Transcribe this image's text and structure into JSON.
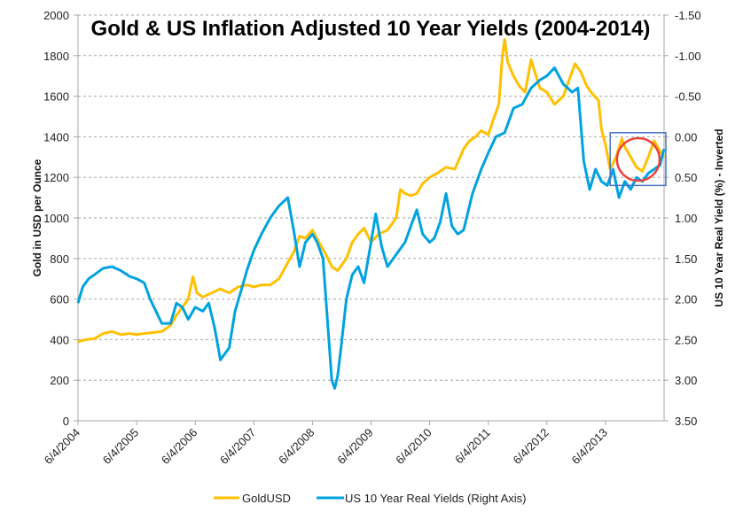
{
  "chart_data": {
    "type": "line",
    "title": "Gold & US Inflation Adjusted 10 Year Yields (2004-2014)",
    "xlabel": "",
    "ylabel": "Gold in USD per Ounce",
    "y2label": "US 10 Year Real Yield (%) - Inverted",
    "ylim": [
      0,
      2000
    ],
    "y2lim": [
      -1.5,
      3.5
    ],
    "y2_inverted": true,
    "xlim": [
      2004.42,
      2014.42
    ],
    "grid": true,
    "legend_position": "bottom",
    "colors": {
      "gold": "#FFC000",
      "yield": "#00A3E0",
      "box": "#4472C4",
      "circle": "#E8423A",
      "axis": "#A6A6A6",
      "grid": "#A6A6A6"
    },
    "y_ticks": [
      "0",
      "200",
      "400",
      "600",
      "800",
      "1000",
      "1200",
      "1400",
      "1600",
      "1800",
      "2000"
    ],
    "y2_ticks": [
      "-1.50",
      "-1.00",
      "-0.50",
      "0.00",
      "0.50",
      "1.00",
      "1.50",
      "2.00",
      "2.50",
      "3.00",
      "3.50"
    ],
    "x_ticks": [
      "6/4/2004",
      "6/4/2005",
      "6/4/2006",
      "6/4/2007",
      "6/4/2008",
      "6/4/2009",
      "6/4/2010",
      "6/4/2011",
      "6/4/2012",
      "6/4/2013"
    ],
    "series": [
      {
        "name": "GoldUSD",
        "axis": "left",
        "x": [
          2004.42,
          2004.55,
          2004.7,
          2004.85,
          2005.0,
          2005.15,
          2005.3,
          2005.42,
          2005.55,
          2005.7,
          2005.85,
          2006.0,
          2006.1,
          2006.2,
          2006.3,
          2006.38,
          2006.45,
          2006.55,
          2006.7,
          2006.85,
          2007.0,
          2007.15,
          2007.3,
          2007.42,
          2007.55,
          2007.7,
          2007.85,
          2008.0,
          2008.1,
          2008.2,
          2008.3,
          2008.42,
          2008.55,
          2008.65,
          2008.75,
          2008.85,
          2009.0,
          2009.1,
          2009.2,
          2009.3,
          2009.42,
          2009.55,
          2009.7,
          2009.85,
          2009.92,
          2010.0,
          2010.1,
          2010.2,
          2010.3,
          2010.42,
          2010.55,
          2010.7,
          2010.85,
          2011.0,
          2011.1,
          2011.2,
          2011.3,
          2011.42,
          2011.5,
          2011.6,
          2011.66,
          2011.7,
          2011.75,
          2011.85,
          2011.95,
          2012.05,
          2012.15,
          2012.3,
          2012.42,
          2012.55,
          2012.7,
          2012.8,
          2012.9,
          2013.0,
          2013.1,
          2013.2,
          2013.3,
          2013.35,
          2013.42,
          2013.5,
          2013.6,
          2013.7,
          2013.75,
          2013.85,
          2013.95,
          2014.05,
          2014.15,
          2014.25,
          2014.35,
          2014.42
        ],
        "values": [
          390,
          400,
          405,
          430,
          440,
          425,
          430,
          425,
          430,
          435,
          440,
          470,
          520,
          560,
          600,
          710,
          630,
          610,
          630,
          650,
          630,
          660,
          670,
          660,
          670,
          670,
          700,
          780,
          830,
          910,
          900,
          940,
          870,
          820,
          760,
          740,
          800,
          880,
          920,
          950,
          880,
          920,
          940,
          1000,
          1140,
          1120,
          1110,
          1120,
          1170,
          1200,
          1220,
          1250,
          1240,
          1340,
          1380,
          1400,
          1430,
          1410,
          1480,
          1560,
          1800,
          1880,
          1770,
          1700,
          1650,
          1620,
          1780,
          1640,
          1620,
          1560,
          1600,
          1680,
          1760,
          1720,
          1650,
          1610,
          1580,
          1440,
          1360,
          1240,
          1300,
          1390,
          1350,
          1300,
          1250,
          1230,
          1300,
          1380,
          1330,
          1300
        ]
      },
      {
        "name": "US 10 Year Real Yields (Right Axis)",
        "axis": "right",
        "x": [
          2004.42,
          2004.5,
          2004.6,
          2004.7,
          2004.85,
          2005.0,
          2005.15,
          2005.3,
          2005.42,
          2005.55,
          2005.65,
          2005.75,
          2005.85,
          2006.0,
          2006.1,
          2006.2,
          2006.3,
          2006.42,
          2006.55,
          2006.65,
          2006.75,
          2006.85,
          2007.0,
          2007.1,
          2007.2,
          2007.3,
          2007.42,
          2007.55,
          2007.7,
          2007.85,
          2008.0,
          2008.1,
          2008.2,
          2008.3,
          2008.42,
          2008.5,
          2008.6,
          2008.7,
          2008.75,
          2008.8,
          2008.85,
          2008.9,
          2009.0,
          2009.1,
          2009.2,
          2009.3,
          2009.42,
          2009.5,
          2009.6,
          2009.7,
          2009.85,
          2010.0,
          2010.1,
          2010.2,
          2010.3,
          2010.42,
          2010.5,
          2010.6,
          2010.7,
          2010.8,
          2010.9,
          2011.0,
          2011.15,
          2011.3,
          2011.42,
          2011.55,
          2011.7,
          2011.85,
          2012.0,
          2012.15,
          2012.3,
          2012.42,
          2012.55,
          2012.7,
          2012.85,
          2012.95,
          2013.05,
          2013.15,
          2013.25,
          2013.35,
          2013.45,
          2013.55,
          2013.65,
          2013.75,
          2013.85,
          2013.95,
          2014.05,
          2014.15,
          2014.25,
          2014.35,
          2014.42
        ],
        "values": [
          2.05,
          1.85,
          1.75,
          1.7,
          1.62,
          1.6,
          1.65,
          1.72,
          1.75,
          1.8,
          2.0,
          2.15,
          2.3,
          2.3,
          2.05,
          2.1,
          2.25,
          2.1,
          2.15,
          2.05,
          2.35,
          2.75,
          2.6,
          2.15,
          1.9,
          1.65,
          1.4,
          1.2,
          1.0,
          0.85,
          0.75,
          1.15,
          1.6,
          1.3,
          1.2,
          1.3,
          1.5,
          2.5,
          3.0,
          3.1,
          2.95,
          2.65,
          2.0,
          1.7,
          1.6,
          1.8,
          1.3,
          0.95,
          1.35,
          1.6,
          1.45,
          1.3,
          1.1,
          0.9,
          1.2,
          1.3,
          1.25,
          1.05,
          0.7,
          1.1,
          1.2,
          1.15,
          0.7,
          0.4,
          0.2,
          0.0,
          -0.05,
          -0.35,
          -0.4,
          -0.6,
          -0.7,
          -0.75,
          -0.85,
          -0.65,
          -0.55,
          -0.6,
          0.3,
          0.65,
          0.4,
          0.55,
          0.6,
          0.4,
          0.75,
          0.55,
          0.65,
          0.5,
          0.55,
          0.45,
          0.4,
          0.35,
          0.15
        ]
      }
    ],
    "annotations": [
      {
        "type": "rectangle",
        "x_range": [
          2013.5,
          2014.45
        ],
        "y2_range": [
          -0.05,
          0.6
        ],
        "label": ""
      },
      {
        "type": "circle",
        "center_x": 2013.98,
        "center_y2": 0.28,
        "label": ""
      }
    ]
  },
  "legend": {
    "items": [
      {
        "label": "GoldUSD",
        "color": "#FFC000"
      },
      {
        "label": "US 10 Year Real Yields (Right Axis)",
        "color": "#00A3E0"
      }
    ]
  }
}
